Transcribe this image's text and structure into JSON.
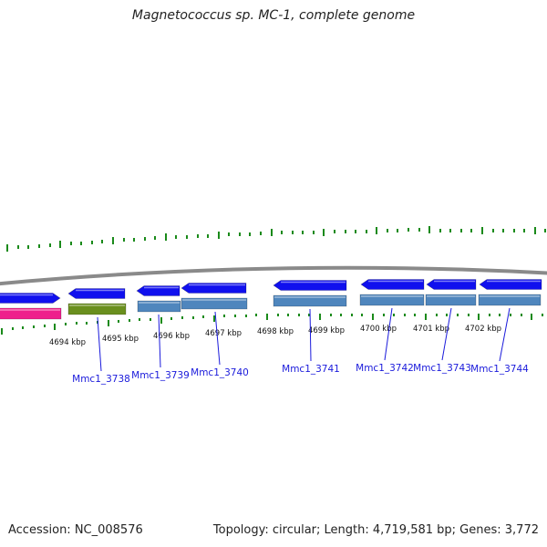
{
  "title": "Magnetococcus sp. MC-1, complete genome",
  "footer": {
    "accession": "Accession: NC_008576",
    "summary": "Topology: circular; Length: 4,719,581 bp; Genes: 3,772"
  },
  "colors": {
    "backbone": "#8a8a8a",
    "forward_gene": "#1010ee",
    "reverse_gene": "#4f86bd",
    "pink_gene": "#ee1f8c",
    "olive_gene": "#6a8f1e",
    "gc_tick": "#1a8a1a",
    "scale_tick": "#1a8a1a",
    "label": "#1a1adb"
  },
  "scale_ticks": [
    {
      "label": "4694 kbp"
    },
    {
      "label": "4695 kbp"
    },
    {
      "label": "4696 kbp"
    },
    {
      "label": "4697 kbp"
    },
    {
      "label": "4698 kbp"
    },
    {
      "label": "4699 kbp"
    },
    {
      "label": "4700 kbp"
    },
    {
      "label": "4701 kbp"
    },
    {
      "label": "4702 kbp"
    }
  ],
  "gene_labels": [
    {
      "text": "Mmc1_3738"
    },
    {
      "text": "Mmc1_3739"
    },
    {
      "text": "Mmc1_3740"
    },
    {
      "text": "Mmc1_3741"
    },
    {
      "text": "Mmc1_3742"
    },
    {
      "text": "Mmc1_3743"
    },
    {
      "text": "Mmc1_3744"
    }
  ]
}
